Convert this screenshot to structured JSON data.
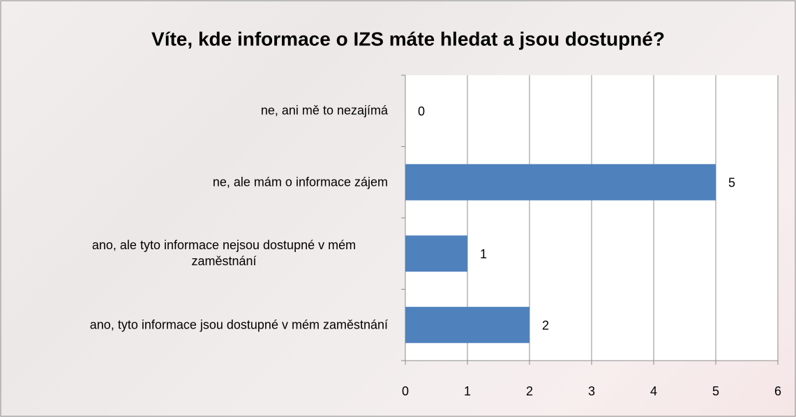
{
  "chart_data": {
    "type": "bar",
    "orientation": "horizontal",
    "title": "Víte, kde informace o IZS máte hledat a jsou dostupné?",
    "categories": [
      "ne, ani mě to nezajímá",
      "ne, ale mám o informace zájem",
      "ano, ale tyto informace nejsou dostupné v mém zaměstnání",
      "ano, tyto informace jsou dostupné v mém zaměstnání"
    ],
    "values": [
      0,
      5,
      1,
      2
    ],
    "color": "#4f81bd",
    "xlim": [
      0,
      6
    ],
    "xticks": [
      0,
      1,
      2,
      3,
      4,
      5,
      6
    ],
    "grid": true
  }
}
